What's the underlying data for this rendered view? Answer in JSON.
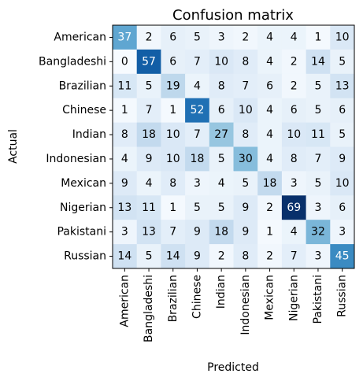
{
  "chart_data": {
    "type": "heatmap",
    "title": "Confusion matrix",
    "xlabel": "Predicted",
    "ylabel": "Actual",
    "rows": [
      "American",
      "Bangladeshi",
      "Brazilian",
      "Chinese",
      "Indian",
      "Indonesian",
      "Mexican",
      "Nigerian",
      "Pakistani",
      "Russian"
    ],
    "columns": [
      "American",
      "Bangladeshi",
      "Brazilian",
      "Chinese",
      "Indian",
      "Indonesian",
      "Mexican",
      "Nigerian",
      "Pakistani",
      "Russian"
    ],
    "values": [
      [
        37,
        2,
        6,
        5,
        3,
        2,
        4,
        4,
        1,
        10
      ],
      [
        0,
        57,
        6,
        7,
        10,
        8,
        4,
        2,
        14,
        5
      ],
      [
        11,
        5,
        19,
        4,
        8,
        7,
        6,
        2,
        5,
        13
      ],
      [
        1,
        7,
        1,
        52,
        6,
        10,
        4,
        6,
        5,
        6
      ],
      [
        8,
        18,
        10,
        7,
        27,
        8,
        4,
        10,
        11,
        5
      ],
      [
        4,
        9,
        10,
        18,
        5,
        30,
        4,
        8,
        7,
        9
      ],
      [
        9,
        4,
        8,
        3,
        4,
        5,
        18,
        3,
        5,
        10
      ],
      [
        13,
        11,
        1,
        5,
        5,
        9,
        2,
        69,
        3,
        6
      ],
      [
        3,
        13,
        7,
        9,
        18,
        9,
        1,
        4,
        32,
        3
      ],
      [
        14,
        5,
        14,
        9,
        2,
        8,
        2,
        7,
        3,
        45
      ]
    ],
    "colormap": "Blues",
    "vmin": 0,
    "vmax": 69,
    "grid": false,
    "legend": "none"
  }
}
